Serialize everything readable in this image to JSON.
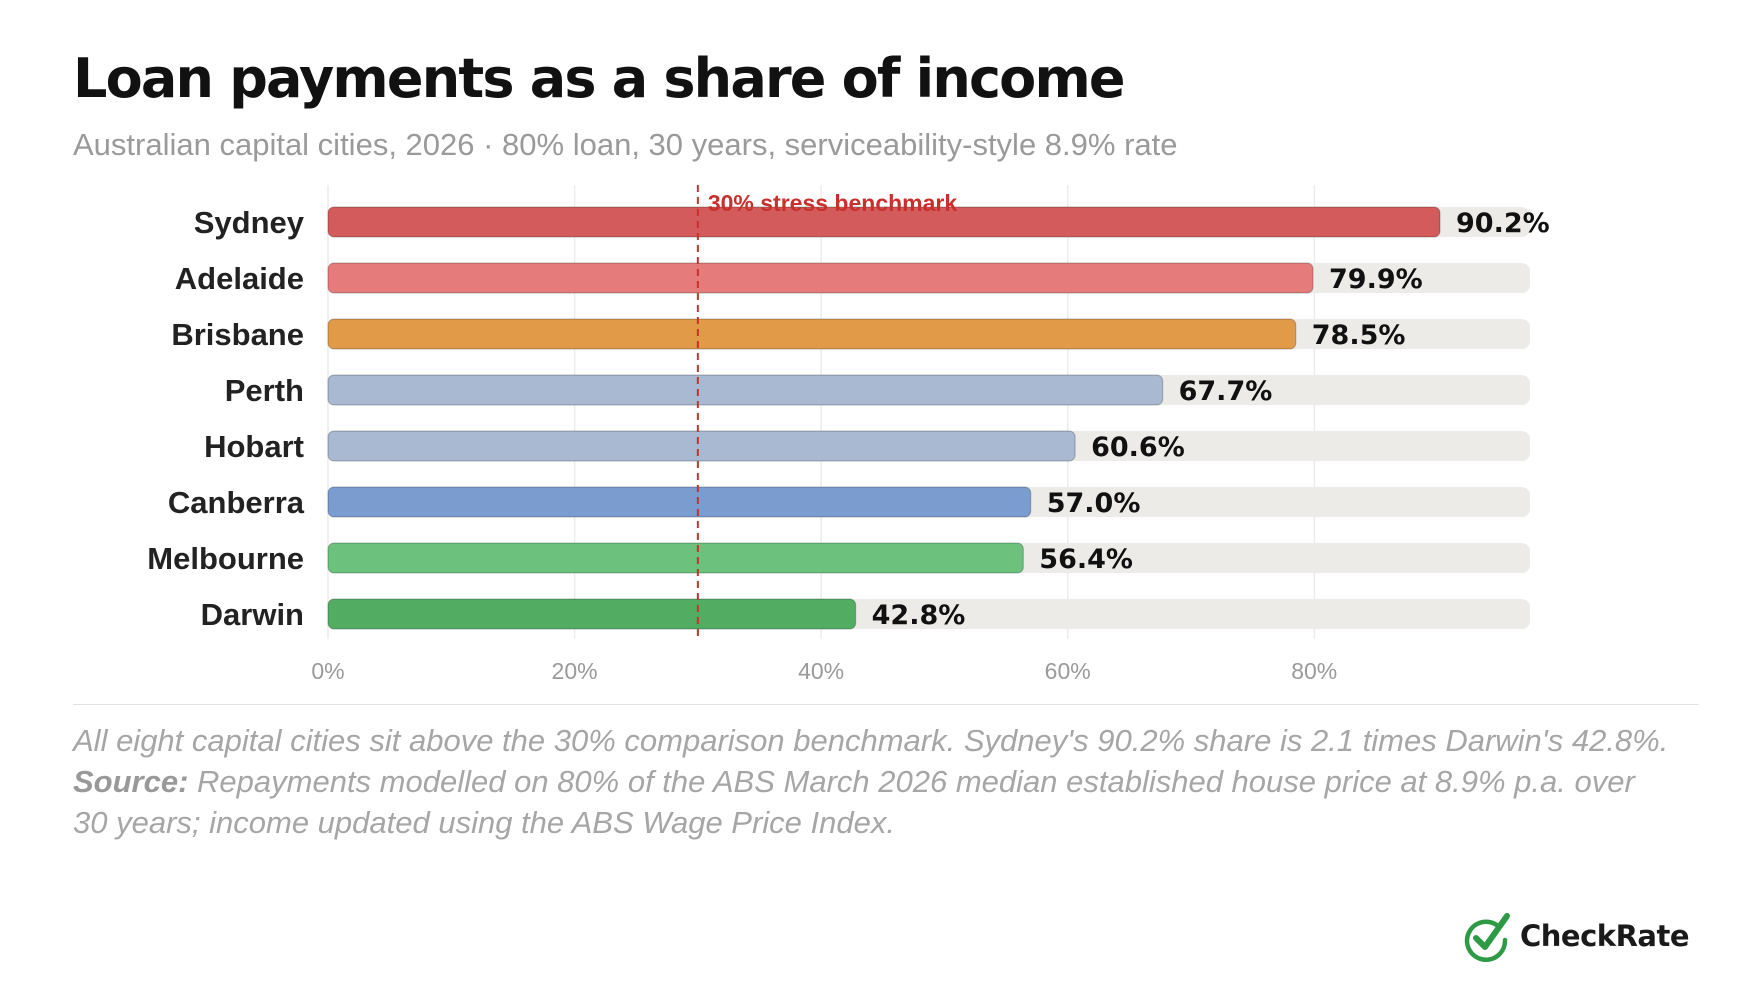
{
  "chart_data": {
    "type": "bar",
    "orientation": "horizontal",
    "title": "Loan payments as a share of income",
    "subtitle": "Australian capital cities, 2026 · 80% loan, 30 years, serviceability-style 8.9% rate",
    "categories": [
      "Sydney",
      "Adelaide",
      "Brisbane",
      "Perth",
      "Hobart",
      "Canberra",
      "Melbourne",
      "Darwin"
    ],
    "values": [
      90.2,
      79.9,
      78.5,
      67.7,
      60.6,
      57.0,
      56.4,
      42.8
    ],
    "value_labels": [
      "90.2%",
      "79.9%",
      "78.5%",
      "67.7%",
      "60.6%",
      "57.0%",
      "56.4%",
      "42.8%"
    ],
    "colors": [
      "#d45b5b",
      "#e67b7b",
      "#e19a47",
      "#a8b9d1",
      "#a8b9d1",
      "#7b9ccf",
      "#6cc27d",
      "#52ad63"
    ],
    "track_color": "#ecebe7",
    "x_ticks": [
      0,
      20,
      40,
      60,
      80
    ],
    "x_tick_labels": [
      "0%",
      "20%",
      "40%",
      "60%",
      "80%"
    ],
    "xlim": [
      0,
      97.5
    ],
    "grid": true,
    "benchmark": {
      "value": 30,
      "label": "30% stress benchmark",
      "color": "#c9302c"
    }
  },
  "footer": {
    "note": "All eight capital cities sit above the 30% comparison benchmark. Sydney's 90.2% share is 2.1 times Darwin's 42.8%.",
    "source_label": "Source:",
    "source_text": " Repayments modelled on 80% of the ABS March 2026 median established house price at 8.9% p.a. over 30 years; income updated using the ABS Wage Price Index."
  },
  "brand": {
    "name": "CheckRate",
    "icon": "checkmark-circle-icon",
    "color": "#2e9a45"
  }
}
